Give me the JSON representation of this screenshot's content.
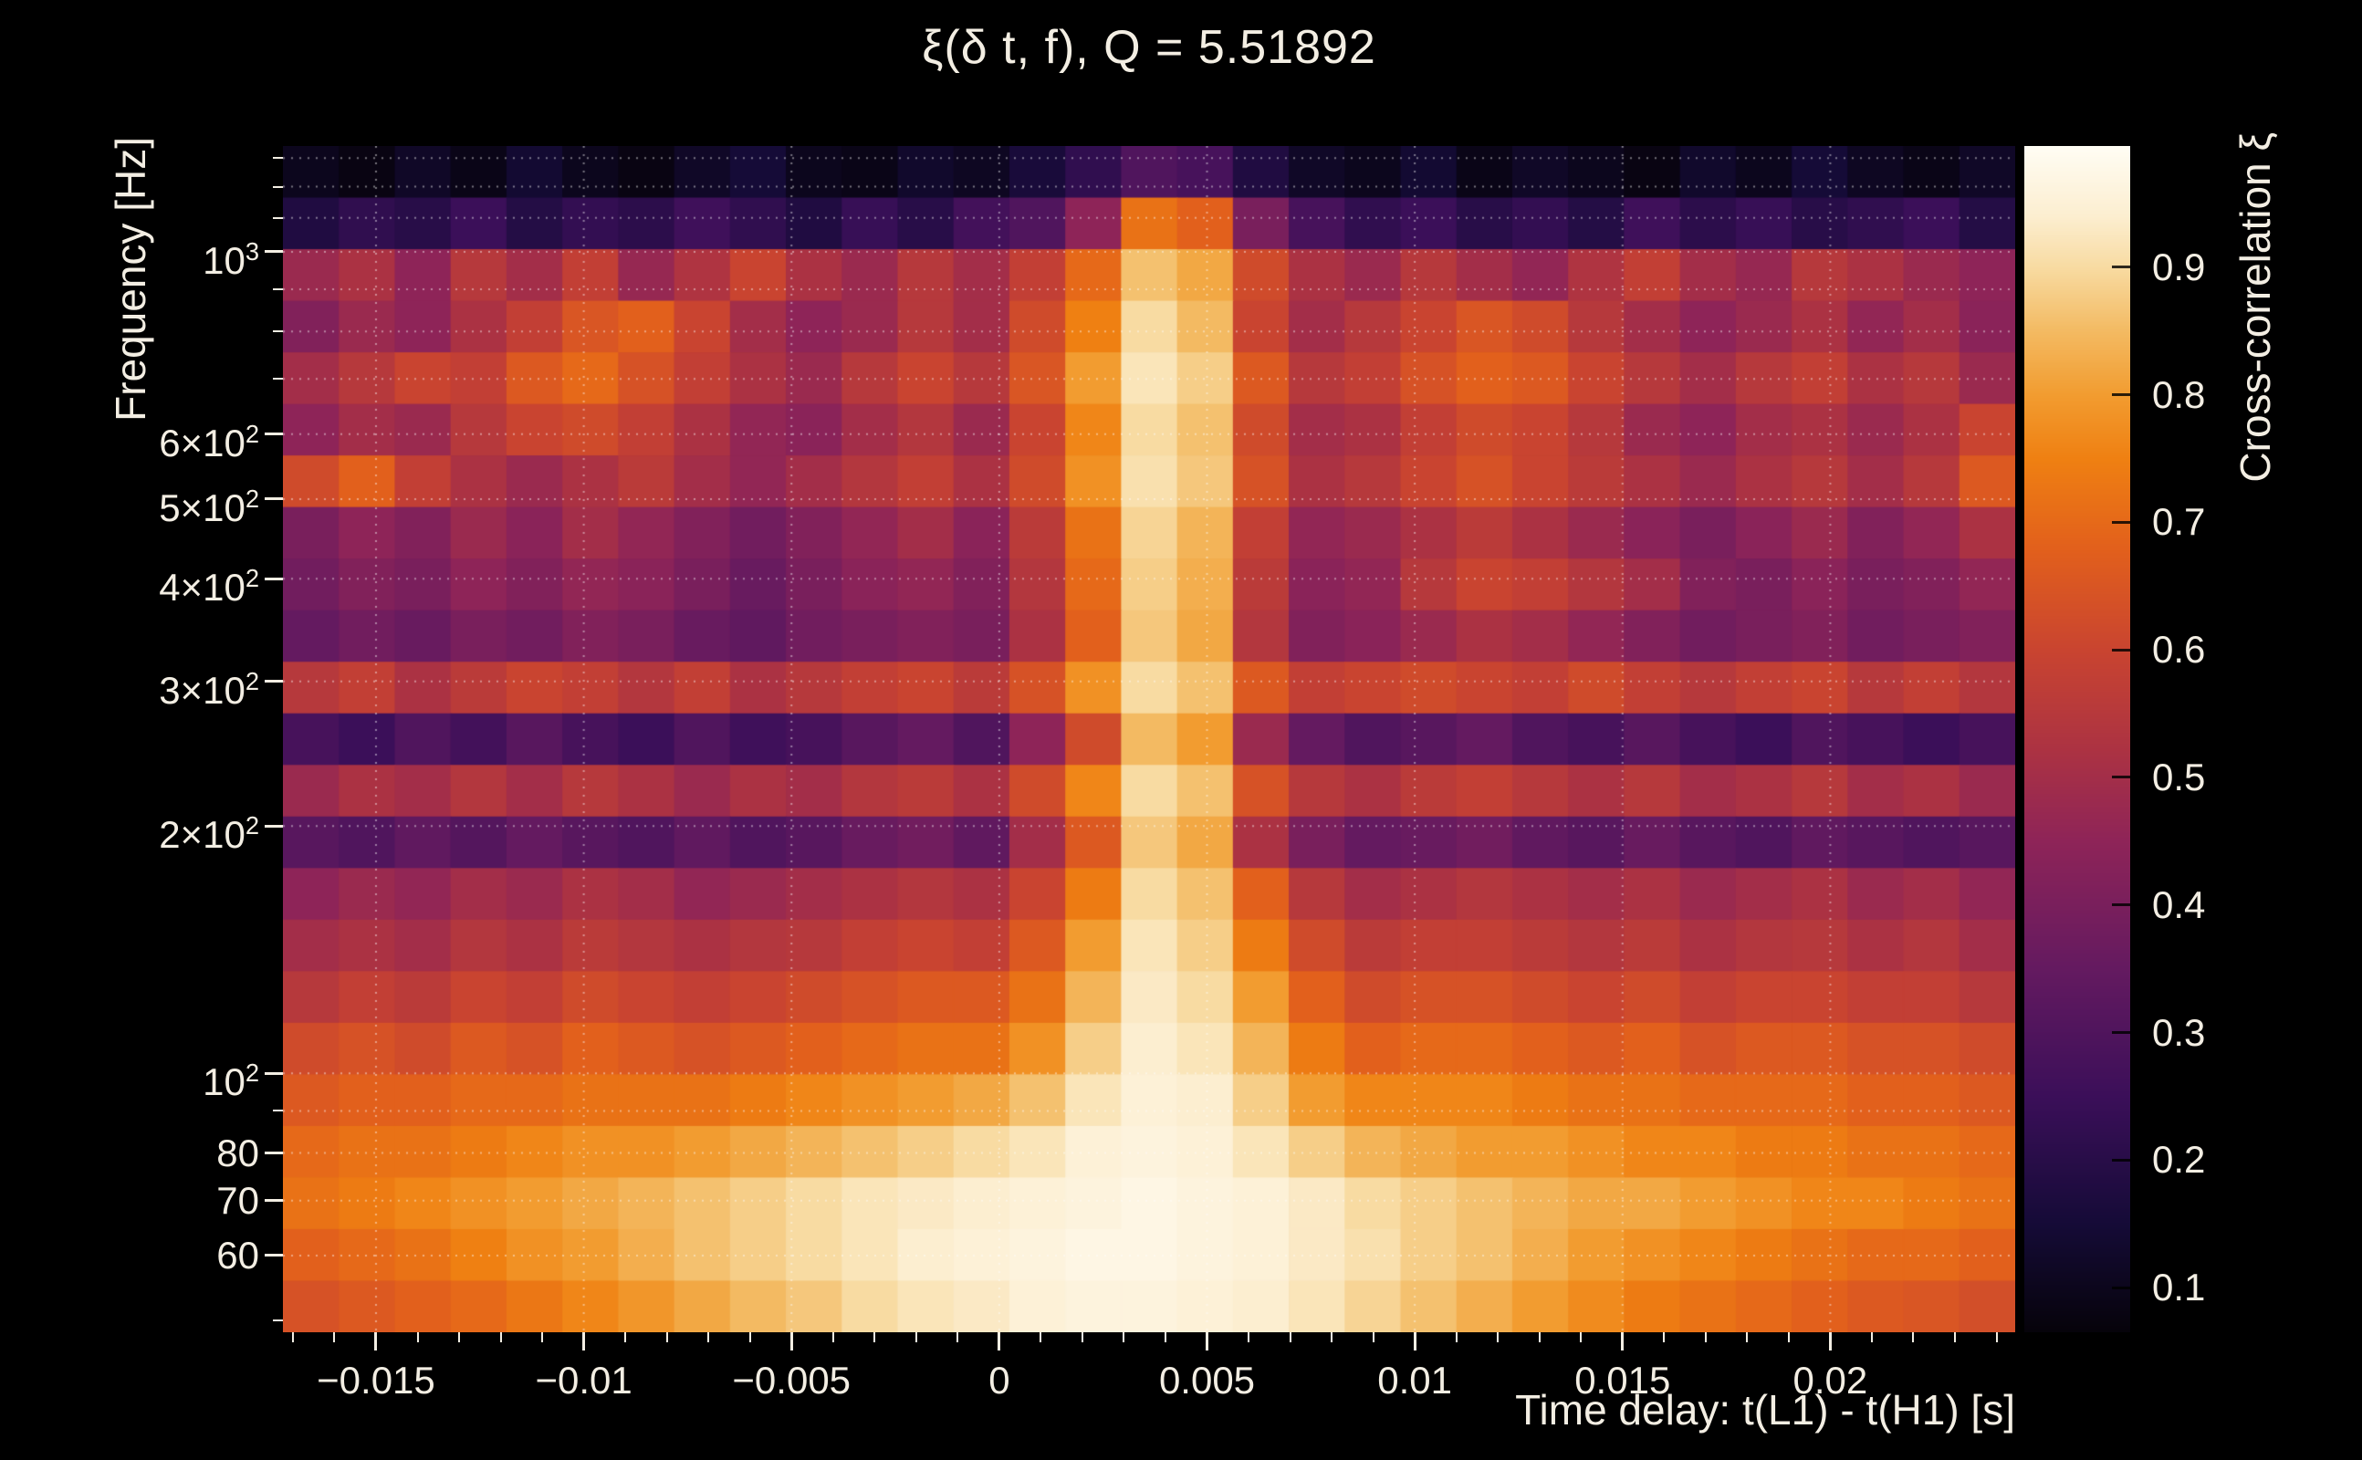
{
  "title": "ξ(δ t, f), Q = 5.51892",
  "colors": {
    "background": "#000000",
    "text": "#f3eee3",
    "grid": "rgba(255,255,255,0.45)",
    "colorbar_tick": "rgba(0,0,0,0.82)"
  },
  "axes": {
    "x": {
      "label": "Time delay: t(L1) - t(H1) [s]",
      "min": -0.01724,
      "max": 0.02445,
      "major_ticks": [
        {
          "v": -0.015,
          "label": "−0.015"
        },
        {
          "v": -0.01,
          "label": "−0.01"
        },
        {
          "v": -0.005,
          "label": "−0.005"
        },
        {
          "v": 0,
          "label": "0"
        },
        {
          "v": 0.005,
          "label": "0.005"
        },
        {
          "v": 0.01,
          "label": "0.01"
        },
        {
          "v": 0.015,
          "label": "0.015"
        },
        {
          "v": 0.02,
          "label": "0.02"
        }
      ],
      "minor_tick_step": 0.001
    },
    "y": {
      "label": "Frequency [Hz]",
      "scale": "log",
      "min": 48.4,
      "max": 1345,
      "major_ticks": [
        {
          "v": 1000,
          "base": "10",
          "exp": "3"
        },
        {
          "v": 600,
          "base": "6×10",
          "exp": "2"
        },
        {
          "v": 500,
          "base": "5×10",
          "exp": "2"
        },
        {
          "v": 400,
          "base": "4×10",
          "exp": "2"
        },
        {
          "v": 300,
          "base": "3×10",
          "exp": "2"
        },
        {
          "v": 200,
          "base": "2×10",
          "exp": "2"
        },
        {
          "v": 100,
          "base": "10",
          "exp": "2"
        },
        {
          "v": 80,
          "base": "80"
        },
        {
          "v": 70,
          "base": "70"
        },
        {
          "v": 60,
          "base": "60"
        }
      ],
      "minor_ticks": [
        50,
        90,
        700,
        800,
        900,
        1100,
        1200,
        1300
      ],
      "gridlines": [
        60,
        70,
        80,
        90,
        100,
        200,
        300,
        400,
        500,
        600,
        700,
        800,
        900,
        1000,
        1100,
        1200,
        1300
      ]
    },
    "colorbar": {
      "label": "Cross-correlation ξ",
      "min": 0.065,
      "max": 0.995,
      "major_ticks": [
        {
          "v": 0.9,
          "label": "0.9"
        },
        {
          "v": 0.8,
          "label": "0.8"
        },
        {
          "v": 0.7,
          "label": "0.7"
        },
        {
          "v": 0.6,
          "label": "0.6"
        },
        {
          "v": 0.5,
          "label": "0.5"
        },
        {
          "v": 0.4,
          "label": "0.4"
        },
        {
          "v": 0.3,
          "label": "0.3"
        },
        {
          "v": 0.2,
          "label": "0.2"
        },
        {
          "v": 0.1,
          "label": "0.1"
        }
      ]
    }
  },
  "chart_data": {
    "type": "heatmap",
    "title": "ξ(δ t, f), Q = 5.51892",
    "xlabel": "Time delay: t(L1) - t(H1) [s]",
    "ylabel": "Frequency [Hz]",
    "zlabel": "Cross-correlation ξ",
    "x_range_s": [
      -0.01724,
      0.02445
    ],
    "y_range_hz": [
      48.4,
      1345
    ],
    "y_scale": "log",
    "z_range": [
      0.065,
      0.995
    ],
    "grid": "dotted",
    "peak_time_delay_s": 0.0045,
    "x_time_delay_s": [
      -0.0166,
      -0.0152,
      -0.0139,
      -0.0125,
      -0.0112,
      -0.0098,
      -0.0085,
      -0.0071,
      -0.0058,
      -0.0044,
      -0.0031,
      -0.0017,
      -0.0004,
      0.001,
      0.0023,
      0.0037,
      0.005,
      0.0064,
      0.0077,
      0.0091,
      0.0104,
      0.0118,
      0.0131,
      0.0145,
      0.0158,
      0.0172,
      0.0185,
      0.0199,
      0.0212,
      0.0226,
      0.0239
    ],
    "y_frequency_hz": [
      1250,
      1082,
      936,
      810,
      701,
      607,
      525,
      455,
      394,
      341,
      295,
      255,
      221,
      191,
      165,
      143,
      124,
      107,
      93,
      80,
      69,
      60,
      52
    ],
    "values_note": "rows ordered top (high frequency) to bottom (low frequency)",
    "values": [
      [
        0.1,
        0.08,
        0.12,
        0.09,
        0.14,
        0.1,
        0.08,
        0.12,
        0.15,
        0.1,
        0.09,
        0.13,
        0.11,
        0.16,
        0.22,
        0.3,
        0.28,
        0.18,
        0.12,
        0.1,
        0.14,
        0.09,
        0.12,
        0.1,
        0.08,
        0.13,
        0.1,
        0.15,
        0.11,
        0.09,
        0.12
      ],
      [
        0.18,
        0.22,
        0.2,
        0.25,
        0.19,
        0.23,
        0.21,
        0.26,
        0.22,
        0.18,
        0.24,
        0.2,
        0.27,
        0.3,
        0.45,
        0.72,
        0.68,
        0.4,
        0.28,
        0.22,
        0.25,
        0.2,
        0.23,
        0.19,
        0.26,
        0.21,
        0.24,
        0.2,
        0.22,
        0.25,
        0.19
      ],
      [
        0.48,
        0.52,
        0.45,
        0.55,
        0.5,
        0.58,
        0.47,
        0.53,
        0.6,
        0.52,
        0.48,
        0.55,
        0.5,
        0.58,
        0.7,
        0.86,
        0.82,
        0.62,
        0.52,
        0.48,
        0.55,
        0.5,
        0.46,
        0.53,
        0.58,
        0.5,
        0.47,
        0.55,
        0.52,
        0.48,
        0.45
      ],
      [
        0.42,
        0.48,
        0.45,
        0.52,
        0.58,
        0.65,
        0.68,
        0.6,
        0.5,
        0.45,
        0.48,
        0.55,
        0.5,
        0.62,
        0.75,
        0.9,
        0.85,
        0.6,
        0.5,
        0.55,
        0.6,
        0.65,
        0.62,
        0.55,
        0.5,
        0.45,
        0.48,
        0.52,
        0.46,
        0.5,
        0.44
      ],
      [
        0.5,
        0.55,
        0.6,
        0.58,
        0.66,
        0.7,
        0.64,
        0.58,
        0.52,
        0.48,
        0.55,
        0.6,
        0.55,
        0.65,
        0.8,
        0.92,
        0.88,
        0.66,
        0.55,
        0.58,
        0.64,
        0.68,
        0.66,
        0.6,
        0.55,
        0.5,
        0.55,
        0.58,
        0.52,
        0.55,
        0.48
      ],
      [
        0.45,
        0.5,
        0.48,
        0.55,
        0.6,
        0.62,
        0.58,
        0.52,
        0.46,
        0.44,
        0.5,
        0.54,
        0.48,
        0.6,
        0.76,
        0.9,
        0.86,
        0.62,
        0.5,
        0.52,
        0.58,
        0.62,
        0.6,
        0.55,
        0.48,
        0.45,
        0.5,
        0.52,
        0.48,
        0.52,
        0.6
      ],
      [
        0.62,
        0.68,
        0.58,
        0.52,
        0.48,
        0.52,
        0.56,
        0.5,
        0.46,
        0.5,
        0.54,
        0.58,
        0.52,
        0.62,
        0.78,
        0.91,
        0.87,
        0.64,
        0.52,
        0.55,
        0.6,
        0.64,
        0.6,
        0.56,
        0.52,
        0.48,
        0.52,
        0.55,
        0.5,
        0.55,
        0.66
      ],
      [
        0.4,
        0.45,
        0.42,
        0.48,
        0.44,
        0.5,
        0.46,
        0.42,
        0.38,
        0.42,
        0.46,
        0.5,
        0.44,
        0.56,
        0.72,
        0.89,
        0.84,
        0.58,
        0.46,
        0.48,
        0.52,
        0.56,
        0.52,
        0.48,
        0.44,
        0.4,
        0.44,
        0.48,
        0.42,
        0.46,
        0.52
      ],
      [
        0.38,
        0.42,
        0.4,
        0.45,
        0.42,
        0.46,
        0.44,
        0.4,
        0.36,
        0.4,
        0.44,
        0.46,
        0.42,
        0.54,
        0.7,
        0.88,
        0.83,
        0.56,
        0.44,
        0.46,
        0.55,
        0.6,
        0.58,
        0.54,
        0.5,
        0.42,
        0.4,
        0.44,
        0.4,
        0.42,
        0.46
      ],
      [
        0.35,
        0.38,
        0.36,
        0.4,
        0.38,
        0.42,
        0.4,
        0.36,
        0.34,
        0.38,
        0.4,
        0.42,
        0.4,
        0.52,
        0.68,
        0.87,
        0.82,
        0.54,
        0.42,
        0.44,
        0.48,
        0.52,
        0.5,
        0.46,
        0.42,
        0.38,
        0.4,
        0.42,
        0.38,
        0.4,
        0.42
      ],
      [
        0.55,
        0.58,
        0.52,
        0.56,
        0.6,
        0.58,
        0.54,
        0.58,
        0.52,
        0.55,
        0.58,
        0.6,
        0.56,
        0.64,
        0.78,
        0.9,
        0.86,
        0.66,
        0.58,
        0.6,
        0.62,
        0.6,
        0.58,
        0.62,
        0.58,
        0.55,
        0.58,
        0.6,
        0.55,
        0.58,
        0.54
      ],
      [
        0.28,
        0.25,
        0.3,
        0.27,
        0.32,
        0.28,
        0.25,
        0.3,
        0.26,
        0.28,
        0.32,
        0.35,
        0.3,
        0.45,
        0.62,
        0.85,
        0.8,
        0.48,
        0.35,
        0.3,
        0.32,
        0.35,
        0.3,
        0.28,
        0.32,
        0.28,
        0.25,
        0.3,
        0.28,
        0.25,
        0.28
      ],
      [
        0.48,
        0.52,
        0.5,
        0.54,
        0.5,
        0.55,
        0.52,
        0.48,
        0.52,
        0.5,
        0.54,
        0.56,
        0.52,
        0.62,
        0.76,
        0.9,
        0.86,
        0.64,
        0.55,
        0.52,
        0.56,
        0.58,
        0.55,
        0.52,
        0.55,
        0.5,
        0.52,
        0.55,
        0.5,
        0.52,
        0.48
      ],
      [
        0.32,
        0.3,
        0.34,
        0.31,
        0.35,
        0.32,
        0.3,
        0.34,
        0.3,
        0.32,
        0.36,
        0.38,
        0.34,
        0.5,
        0.66,
        0.87,
        0.82,
        0.52,
        0.4,
        0.35,
        0.36,
        0.38,
        0.34,
        0.32,
        0.36,
        0.32,
        0.3,
        0.34,
        0.32,
        0.3,
        0.32
      ],
      [
        0.45,
        0.48,
        0.46,
        0.5,
        0.48,
        0.52,
        0.5,
        0.46,
        0.48,
        0.5,
        0.52,
        0.54,
        0.52,
        0.6,
        0.74,
        0.9,
        0.86,
        0.68,
        0.55,
        0.5,
        0.52,
        0.54,
        0.52,
        0.5,
        0.52,
        0.48,
        0.5,
        0.52,
        0.48,
        0.5,
        0.46
      ],
      [
        0.5,
        0.52,
        0.5,
        0.54,
        0.52,
        0.56,
        0.54,
        0.52,
        0.54,
        0.55,
        0.58,
        0.6,
        0.58,
        0.66,
        0.8,
        0.92,
        0.88,
        0.74,
        0.62,
        0.56,
        0.58,
        0.58,
        0.56,
        0.54,
        0.56,
        0.52,
        0.54,
        0.55,
        0.52,
        0.54,
        0.5
      ],
      [
        0.55,
        0.58,
        0.56,
        0.6,
        0.58,
        0.62,
        0.6,
        0.58,
        0.6,
        0.62,
        0.64,
        0.66,
        0.66,
        0.72,
        0.84,
        0.93,
        0.9,
        0.8,
        0.68,
        0.62,
        0.64,
        0.64,
        0.62,
        0.6,
        0.62,
        0.58,
        0.6,
        0.6,
        0.58,
        0.58,
        0.55
      ],
      [
        0.62,
        0.64,
        0.62,
        0.66,
        0.64,
        0.68,
        0.66,
        0.64,
        0.66,
        0.68,
        0.7,
        0.72,
        0.72,
        0.78,
        0.88,
        0.94,
        0.92,
        0.84,
        0.74,
        0.68,
        0.7,
        0.7,
        0.68,
        0.66,
        0.68,
        0.64,
        0.66,
        0.66,
        0.64,
        0.64,
        0.62
      ],
      [
        0.66,
        0.68,
        0.68,
        0.7,
        0.7,
        0.72,
        0.72,
        0.72,
        0.74,
        0.76,
        0.78,
        0.8,
        0.82,
        0.86,
        0.92,
        0.95,
        0.94,
        0.88,
        0.8,
        0.76,
        0.76,
        0.76,
        0.74,
        0.72,
        0.72,
        0.7,
        0.7,
        0.7,
        0.68,
        0.68,
        0.66
      ],
      [
        0.7,
        0.72,
        0.72,
        0.74,
        0.76,
        0.78,
        0.78,
        0.8,
        0.82,
        0.84,
        0.86,
        0.88,
        0.9,
        0.92,
        0.95,
        0.96,
        0.95,
        0.92,
        0.88,
        0.84,
        0.82,
        0.8,
        0.8,
        0.78,
        0.76,
        0.76,
        0.74,
        0.74,
        0.72,
        0.72,
        0.7
      ],
      [
        0.72,
        0.74,
        0.76,
        0.78,
        0.8,
        0.82,
        0.84,
        0.86,
        0.88,
        0.9,
        0.92,
        0.93,
        0.94,
        0.95,
        0.96,
        0.97,
        0.96,
        0.95,
        0.93,
        0.9,
        0.88,
        0.86,
        0.84,
        0.82,
        0.82,
        0.8,
        0.78,
        0.76,
        0.76,
        0.74,
        0.72
      ],
      [
        0.68,
        0.7,
        0.72,
        0.75,
        0.78,
        0.8,
        0.83,
        0.86,
        0.88,
        0.9,
        0.92,
        0.94,
        0.95,
        0.96,
        0.97,
        0.97,
        0.96,
        0.95,
        0.93,
        0.91,
        0.88,
        0.86,
        0.83,
        0.8,
        0.78,
        0.76,
        0.74,
        0.72,
        0.7,
        0.7,
        0.68
      ],
      [
        0.64,
        0.66,
        0.68,
        0.7,
        0.73,
        0.76,
        0.79,
        0.82,
        0.85,
        0.87,
        0.9,
        0.92,
        0.93,
        0.95,
        0.96,
        0.96,
        0.95,
        0.94,
        0.92,
        0.89,
        0.86,
        0.83,
        0.8,
        0.77,
        0.74,
        0.72,
        0.7,
        0.68,
        0.66,
        0.65,
        0.63
      ]
    ],
    "colormap_stops": [
      [
        0.065,
        "#06030a"
      ],
      [
        0.15,
        "#150b37"
      ],
      [
        0.25,
        "#3b0f59"
      ],
      [
        0.35,
        "#641a60"
      ],
      [
        0.45,
        "#8e2458"
      ],
      [
        0.52,
        "#ab3243"
      ],
      [
        0.6,
        "#c94430"
      ],
      [
        0.68,
        "#e2601c"
      ],
      [
        0.75,
        "#ef8012"
      ],
      [
        0.8,
        "#f29c30"
      ],
      [
        0.85,
        "#f3ba62"
      ],
      [
        0.9,
        "#f8dba2"
      ],
      [
        0.94,
        "#fceed0"
      ],
      [
        0.995,
        "#fffdf4"
      ]
    ]
  }
}
